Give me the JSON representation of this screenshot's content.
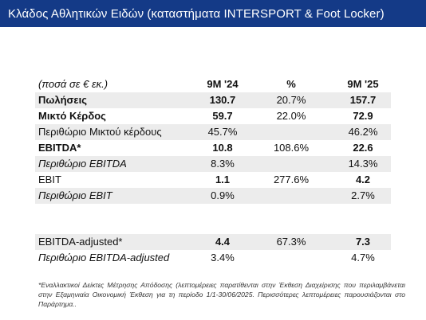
{
  "title": "Κλάδος Αθλητικών Ειδών (καταστήματα INTERSPORT & Foot Locker)",
  "table": {
    "header": {
      "label": "(ποσά σε € εκ.)",
      "col1": "9M '24",
      "col2": "%",
      "col3": "9M '25"
    },
    "rows": [
      {
        "label": "Πωλήσεις",
        "v1": "130.7",
        "v2": "20.7%",
        "v3": "157.7"
      },
      {
        "label": "Μικτό Κέρδος",
        "v1": "59.7",
        "v2": "22.0%",
        "v3": "72.9"
      },
      {
        "label": "Περιθώριο Μικτού κέρδους",
        "v1": "45.7%",
        "v2": "",
        "v3": "46.2%"
      },
      {
        "label": "EBITDA*",
        "v1": "10.8",
        "v2": "108.6%",
        "v3": "22.6"
      },
      {
        "label": "Περιθώριο EBITDA",
        "v1": "8.3%",
        "v2": "",
        "v3": "14.3%"
      },
      {
        "label": "EBIT",
        "v1": "1.1",
        "v2": "277.6%",
        "v3": "4.2"
      },
      {
        "label": "Περιθώριο EBIT",
        "v1": "0.9%",
        "v2": "",
        "v3": "2.7%"
      }
    ],
    "adjusted_rows": [
      {
        "label": "EBITDA-adjusted*",
        "v1": "4.4",
        "v2": "67.3%",
        "v3": "7.3"
      },
      {
        "label": "Περιθώριο EBITDA-adjusted",
        "v1": "3.4%",
        "v2": "",
        "v3": "4.7%"
      }
    ]
  },
  "footnote": "*Εναλλακτικοί Δείκτες Μέτρησης Απόδοσης (λεπτομέρειες παρατίθενται στην Έκθεση Διαχείρισης που περιλαμβάνεται στην Εξαμηνιαία Οικονομική Έκθεση για τη περίοδο 1/1-30/06/2025. Περισσότερες λεπτομέρειες παρουσιάζονται στο Παράρτημα.."
}
